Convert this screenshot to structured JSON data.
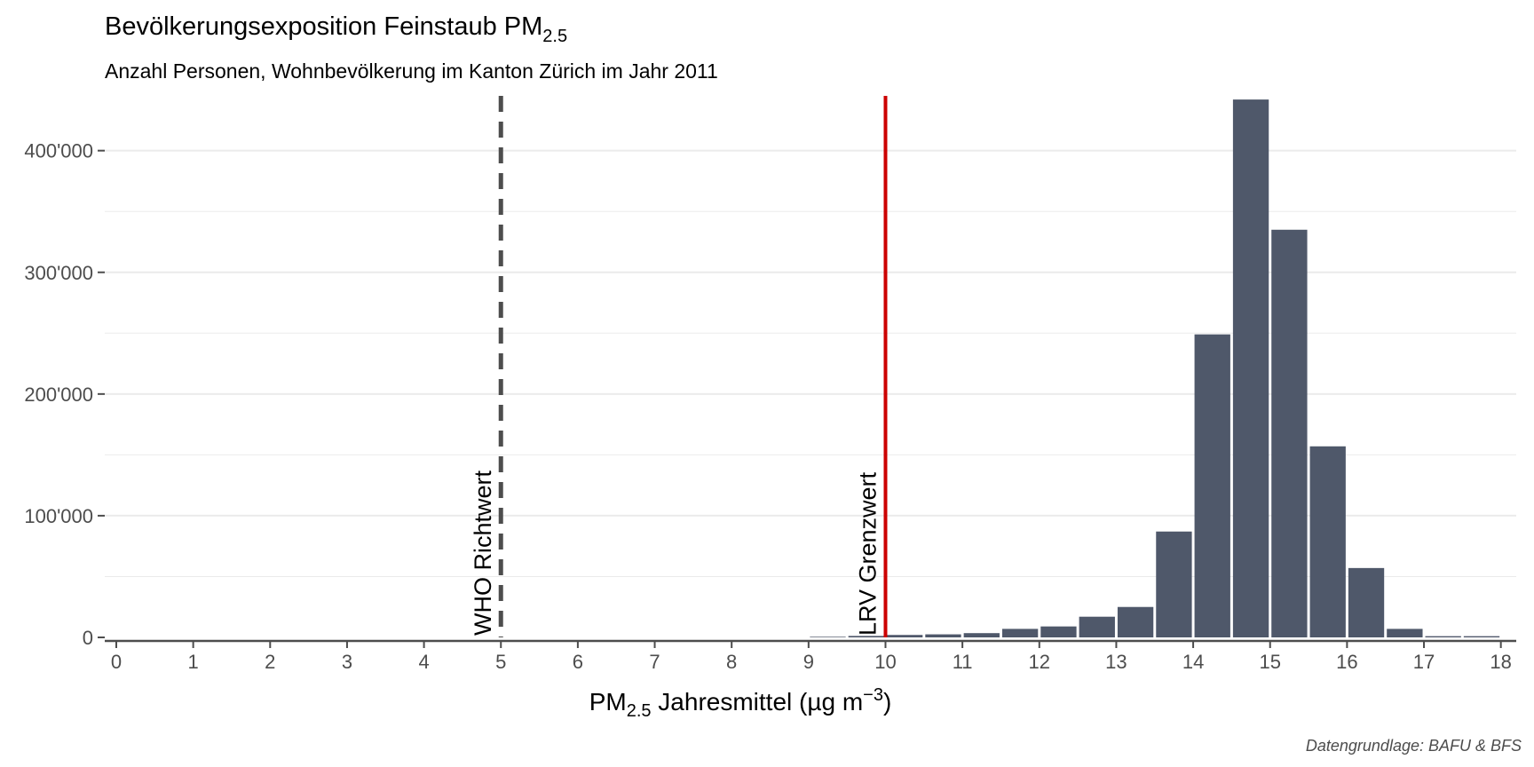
{
  "chart_data": {
    "type": "bar",
    "title": {
      "main": "Bevölkerungsexposition Feinstaub PM",
      "sub": "2.5"
    },
    "subtitle": "Anzahl Personen, Wohnbevölkerung im Kanton Zürich im Jahr 2011",
    "xlabel": {
      "pre": "PM",
      "sub": "2.5",
      "mid": " Jahresmittel (µg m",
      "sup": "−3",
      "post": ")"
    },
    "ylabel": "",
    "caption": "Datengrundlage: BAFU & BFS",
    "xlim": [
      -0.15,
      18.2
    ],
    "ylim": [
      0,
      445000
    ],
    "x_ticks": [
      0,
      1,
      2,
      3,
      4,
      5,
      6,
      7,
      8,
      9,
      10,
      11,
      12,
      13,
      14,
      15,
      16,
      17,
      18
    ],
    "y_ticks": [
      0,
      100000,
      200000,
      300000,
      400000
    ],
    "y_tick_labels": [
      "0",
      "100'000",
      "200'000",
      "300'000",
      "400'000"
    ],
    "bin_width": 0.5,
    "bars": [
      {
        "x": 9.25,
        "value": 500
      },
      {
        "x": 9.75,
        "value": 1200
      },
      {
        "x": 10.25,
        "value": 2000
      },
      {
        "x": 10.75,
        "value": 2500
      },
      {
        "x": 11.25,
        "value": 3500
      },
      {
        "x": 11.75,
        "value": 7000
      },
      {
        "x": 12.25,
        "value": 9000
      },
      {
        "x": 12.75,
        "value": 17000
      },
      {
        "x": 13.25,
        "value": 25000
      },
      {
        "x": 13.75,
        "value": 87000
      },
      {
        "x": 14.25,
        "value": 249000
      },
      {
        "x": 14.75,
        "value": 442000
      },
      {
        "x": 15.25,
        "value": 335000
      },
      {
        "x": 15.75,
        "value": 157000
      },
      {
        "x": 16.25,
        "value": 57000
      },
      {
        "x": 16.75,
        "value": 7000
      },
      {
        "x": 17.25,
        "value": 1000
      },
      {
        "x": 17.75,
        "value": 1000
      }
    ],
    "reference_lines": [
      {
        "x": 5,
        "label": "WHO Richtwert",
        "style": "dashed",
        "color": "#4d4d4d"
      },
      {
        "x": 10,
        "label": "LRV Grenzwert",
        "style": "solid",
        "color": "#cc0000"
      }
    ],
    "colors": {
      "bar": "#4f586a",
      "grid": "#ebebeb",
      "axis": "#4d4d4d"
    },
    "grid": true,
    "legend": "none"
  }
}
